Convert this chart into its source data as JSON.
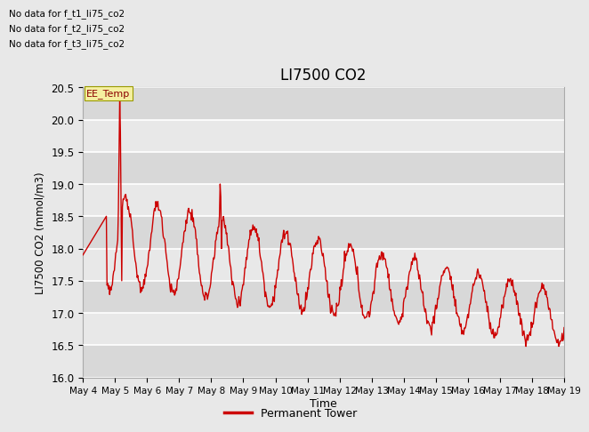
{
  "title": "LI7500 CO2",
  "ylabel": "LI7500 CO2 (mmol/m3)",
  "xlabel": "Time",
  "ylim": [
    16.0,
    20.5
  ],
  "line_color": "#cc0000",
  "line_width": 1.0,
  "bg_color": "#e8e8e8",
  "legend_label": "Permanent Tower",
  "no_data_texts": [
    "No data for f_t1_li75_co2",
    "No data for f_t2_li75_co2",
    "No data for f_t3_li75_co2"
  ],
  "ee_temp_label": "EE_Temp",
  "xtick_labels": [
    "May 4",
    "May 5",
    "May 6",
    "May 7",
    "May 8",
    "May 9",
    "May 10",
    "May 11",
    "May 12",
    "May 13",
    "May 14",
    "May 15",
    "May 16",
    "May 17",
    "May 18",
    "May 19"
  ],
  "ytick_labels": [
    "16.0",
    "16.5",
    "17.0",
    "17.5",
    "18.0",
    "18.5",
    "19.0",
    "19.5",
    "20.0",
    "20.5"
  ],
  "ytick_vals": [
    16.0,
    16.5,
    17.0,
    17.5,
    18.0,
    18.5,
    19.0,
    19.5,
    20.0,
    20.5
  ],
  "num_points": 720,
  "days": 15
}
